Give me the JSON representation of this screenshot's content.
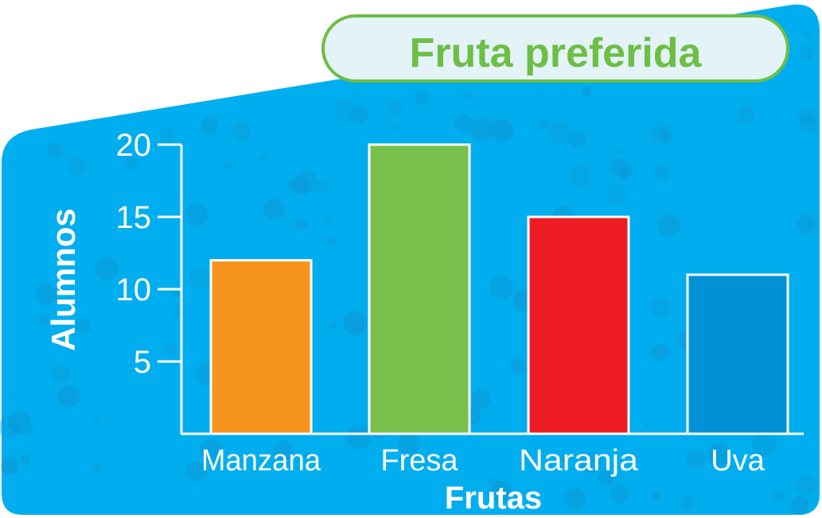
{
  "colors": {
    "panel": "#00AEEF",
    "panel_dots": "#0B9BDA",
    "title_box": "#E3F3F8",
    "title_border": "#6DBE45",
    "title_text": "#6DBE45",
    "axis": "#FFFFFF",
    "text": "#FFFFFF",
    "bar_outline": "#FFFFFF"
  },
  "chart_data": {
    "type": "bar",
    "title": "Fruta preferida",
    "xlabel": "Frutas",
    "ylabel": "Alumnos",
    "categories": [
      "Manzana",
      "Fresa",
      "Naranja",
      "Uva"
    ],
    "values": [
      12,
      20,
      15,
      11
    ],
    "bar_colors": [
      "#F7941D",
      "#76C04B",
      "#ED1C24",
      "#0091D4"
    ],
    "yticks": [
      5,
      10,
      15,
      20
    ],
    "ylim": [
      0,
      20
    ],
    "grid": false,
    "legend": "none"
  }
}
